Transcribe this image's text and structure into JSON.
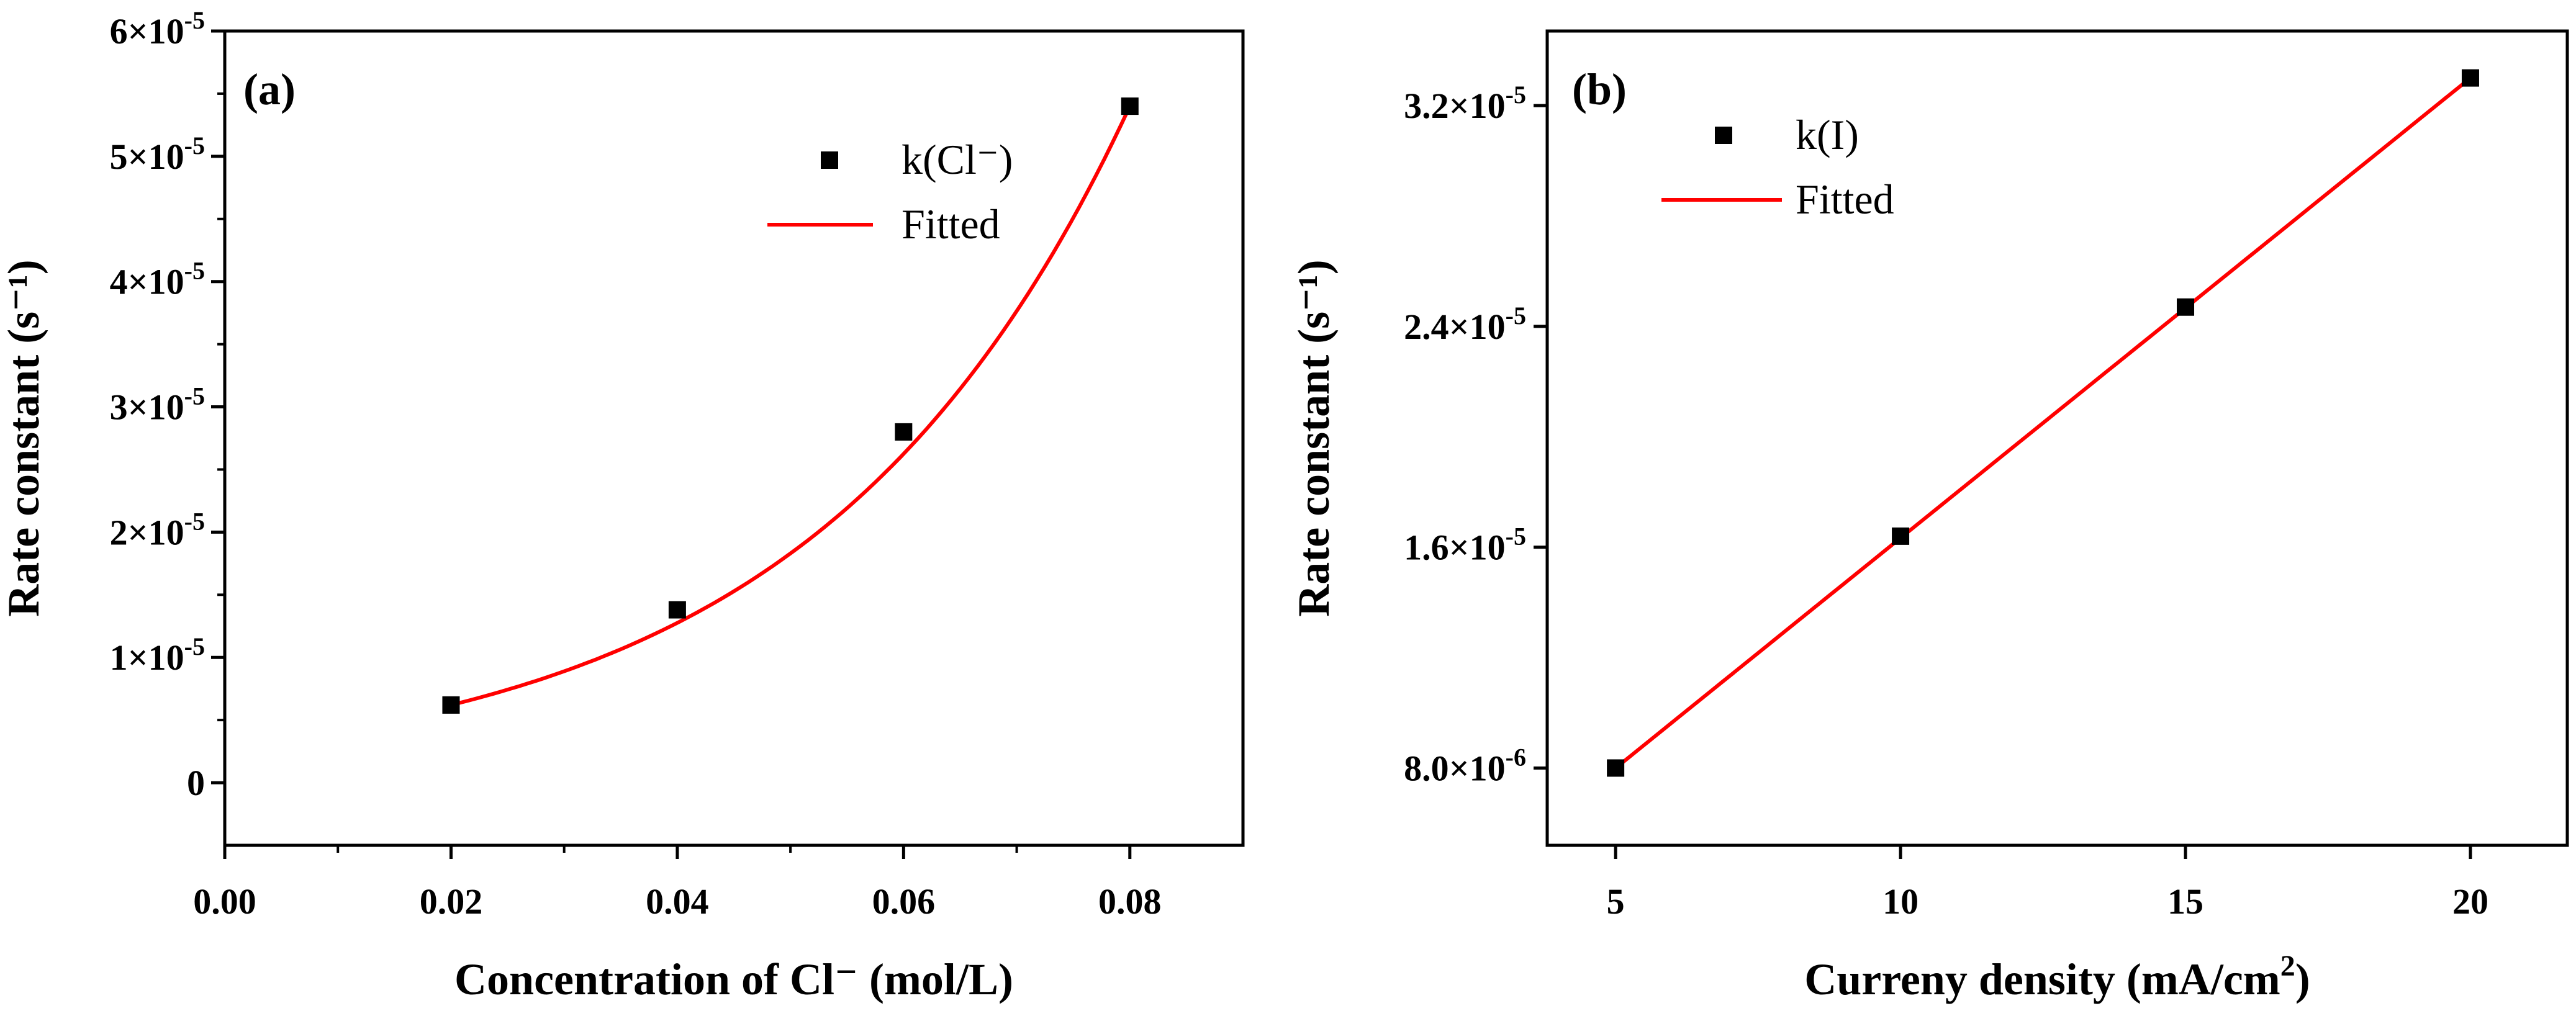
{
  "chart_data": [
    {
      "type": "scatter",
      "panel_label": "(a)",
      "xlabel": "Concentration of Cl⁻ (mol/L)",
      "ylabel": "Rate constant (s⁻¹)",
      "xlim": [
        0.0,
        0.09
      ],
      "ylim": [
        -5e-06,
        6e-05
      ],
      "x_ticks": [
        0.0,
        0.02,
        0.04,
        0.06,
        0.08
      ],
      "x_tick_labels": [
        "0.00",
        "0.02",
        "0.04",
        "0.06",
        "0.08"
      ],
      "y_ticks": [
        0,
        1e-05,
        2e-05,
        3e-05,
        4e-05,
        5e-05,
        6e-05
      ],
      "y_tick_labels": [
        {
          "mant": "0",
          "exp": ""
        },
        {
          "mant": "1×10",
          "exp": "-5"
        },
        {
          "mant": "2×10",
          "exp": "-5"
        },
        {
          "mant": "3×10",
          "exp": "-5"
        },
        {
          "mant": "4×10",
          "exp": "-5"
        },
        {
          "mant": "5×10",
          "exp": "-5"
        },
        {
          "mant": "6×10",
          "exp": "-5"
        }
      ],
      "series": [
        {
          "name": "k(Cl⁻)",
          "kind": "points",
          "color": "#000000",
          "x": [
            0.02,
            0.04,
            0.06,
            0.08
          ],
          "y": [
            6.2e-06,
            1.38e-05,
            2.8e-05,
            5.4e-05
          ]
        },
        {
          "name": "Fitted",
          "kind": "line",
          "color": "#ff0000",
          "fit": "exponential",
          "x": [
            0.02,
            0.08
          ],
          "y": [
            6.2e-06,
            5.4e-05
          ]
        }
      ],
      "legend_position": "top-right"
    },
    {
      "type": "scatter",
      "panel_label": "(b)",
      "xlabel": "Curreny density (mA/cm",
      "xlabel_sup": "2",
      "xlabel_tail": ")",
      "ylabel": "Rate constant (s⁻¹)",
      "xlim": [
        3.8,
        21.7
      ],
      "ylim": [
        5.2e-06,
        3.47e-05
      ],
      "x_ticks": [
        5,
        10,
        15,
        20
      ],
      "x_tick_labels": [
        "5",
        "10",
        "15",
        "20"
      ],
      "y_ticks": [
        8e-06,
        1.6e-05,
        2.4e-05,
        3.2e-05
      ],
      "y_tick_labels": [
        {
          "mant": "8.0×10",
          "exp": "-6"
        },
        {
          "mant": "1.6×10",
          "exp": "-5"
        },
        {
          "mant": "2.4×10",
          "exp": "-5"
        },
        {
          "mant": "3.2×10",
          "exp": "-5"
        }
      ],
      "series": [
        {
          "name": "k(I)",
          "kind": "points",
          "color": "#000000",
          "x": [
            5,
            10,
            15,
            20
          ],
          "y": [
            8e-06,
            1.64e-05,
            2.47e-05,
            3.3e-05
          ]
        },
        {
          "name": "Fitted",
          "kind": "line",
          "color": "#ff0000",
          "fit": "linear",
          "x": [
            5,
            20
          ],
          "y": [
            8e-06,
            3.3e-05
          ]
        }
      ],
      "legend_position": "top-left"
    }
  ]
}
